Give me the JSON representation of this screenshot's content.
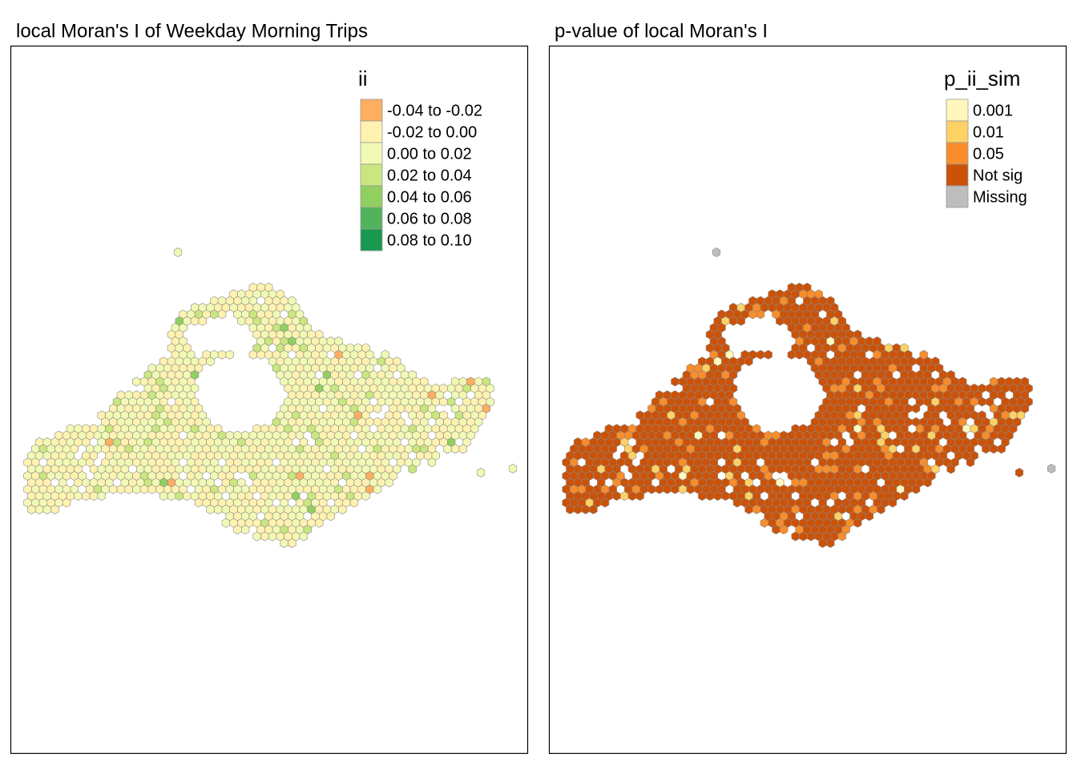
{
  "panels": [
    {
      "title": "local Moran's I of Weekday Morning Trips",
      "legend": {
        "title": "ii",
        "items": [
          {
            "label": "-0.04 to -0.02",
            "color": "#fdae61"
          },
          {
            "label": "-0.02 to 0.00",
            "color": "#fff2b0"
          },
          {
            "label": "0.00 to 0.02",
            "color": "#f2f9b4"
          },
          {
            "label": "0.02 to 0.04",
            "color": "#c9e67f"
          },
          {
            "label": "0.04 to 0.06",
            "color": "#91cf60"
          },
          {
            "label": "0.06 to 0.08",
            "color": "#52b35d"
          },
          {
            "label": "0.08 to 0.10",
            "color": "#1a9850"
          }
        ]
      }
    },
    {
      "title": "p-value of local Moran's I",
      "legend": {
        "title": "p_ii_sim",
        "items": [
          {
            "label": "0.001",
            "color": "#fff7bc"
          },
          {
            "label": "0.01",
            "color": "#fed165"
          },
          {
            "label": "0.05",
            "color": "#f88d2a"
          },
          {
            "label": "Not sig",
            "color": "#cc5208"
          },
          {
            "label": "Missing",
            "color": "#bdbdbd"
          }
        ]
      }
    }
  ]
}
